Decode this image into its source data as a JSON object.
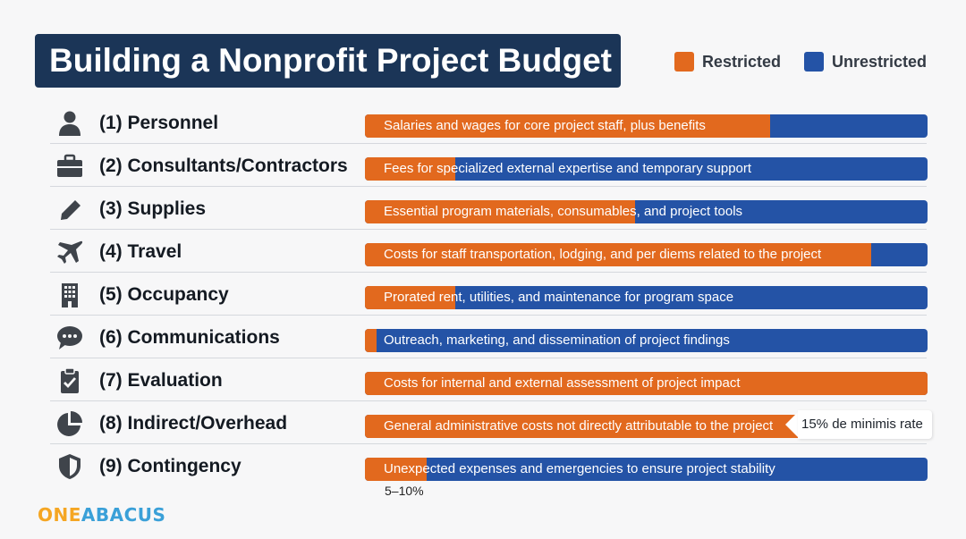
{
  "title": "Building a Nonprofit Project Budget",
  "legend": {
    "restricted": {
      "label": "Restricted",
      "color": "#e2691e"
    },
    "unrestricted": {
      "label": "Unrestricted",
      "color": "#2453a6"
    }
  },
  "chart_data": {
    "type": "bar",
    "orientation": "horizontal-stacked-percent",
    "title": "Building a Nonprofit Project Budget",
    "series": [
      {
        "name": "Restricted",
        "color": "#e2691e",
        "values": [
          72,
          16,
          48,
          90,
          16,
          2,
          100,
          100,
          11
        ]
      },
      {
        "name": "Unrestricted",
        "color": "#2453a6",
        "values": [
          28,
          84,
          52,
          10,
          84,
          98,
          0,
          0,
          89
        ]
      }
    ],
    "categories": [
      "(1) Personnel",
      "(2) Consultants/Contractors",
      "(3) Supplies",
      "(4) Travel",
      "(5) Occupancy",
      "(6) Communications",
      "(7) Evaluation",
      "(8) Indirect/Overhead",
      "(9) Contingency"
    ],
    "legend_position": "top-right",
    "annotations": [
      "15% de minimis rate",
      "5–10%"
    ]
  },
  "rows": [
    {
      "label": "(1) Personnel",
      "icon": "person-icon",
      "desc": "Salaries and wages for core project staff, plus benefits"
    },
    {
      "label": "(2) Consultants/Contractors",
      "icon": "briefcase-icon",
      "desc": "Fees for specialized external expertise and temporary support"
    },
    {
      "label": "(3) Supplies",
      "icon": "pencil-icon",
      "desc": "Essential program materials, consumables, and project tools"
    },
    {
      "label": "(4) Travel",
      "icon": "airplane-icon",
      "desc": "Costs for staff transportation, lodging, and per diems related to the project"
    },
    {
      "label": "(5) Occupancy",
      "icon": "building-icon",
      "desc": "Prorated rent, utilities, and maintenance for program space"
    },
    {
      "label": "(6) Communications",
      "icon": "chat-bubble-icon",
      "desc": "Outreach, marketing, and dissemination of project findings"
    },
    {
      "label": "(7) Evaluation",
      "icon": "clipboard-check-icon",
      "desc": "Costs for internal and external assessment of project impact"
    },
    {
      "label": "(8) Indirect/Overhead",
      "icon": "pie-chart-icon",
      "desc": "General administrative costs not directly attributable to the project"
    },
    {
      "label": "(9) Contingency",
      "icon": "shield-icon",
      "desc": "Unexpected expenses and emergencies to ensure project stability"
    }
  ],
  "callout": "15% de minimis rate",
  "footnote": "5–10%",
  "logo": {
    "part1": "ONE",
    "part2": "ABACUS"
  }
}
